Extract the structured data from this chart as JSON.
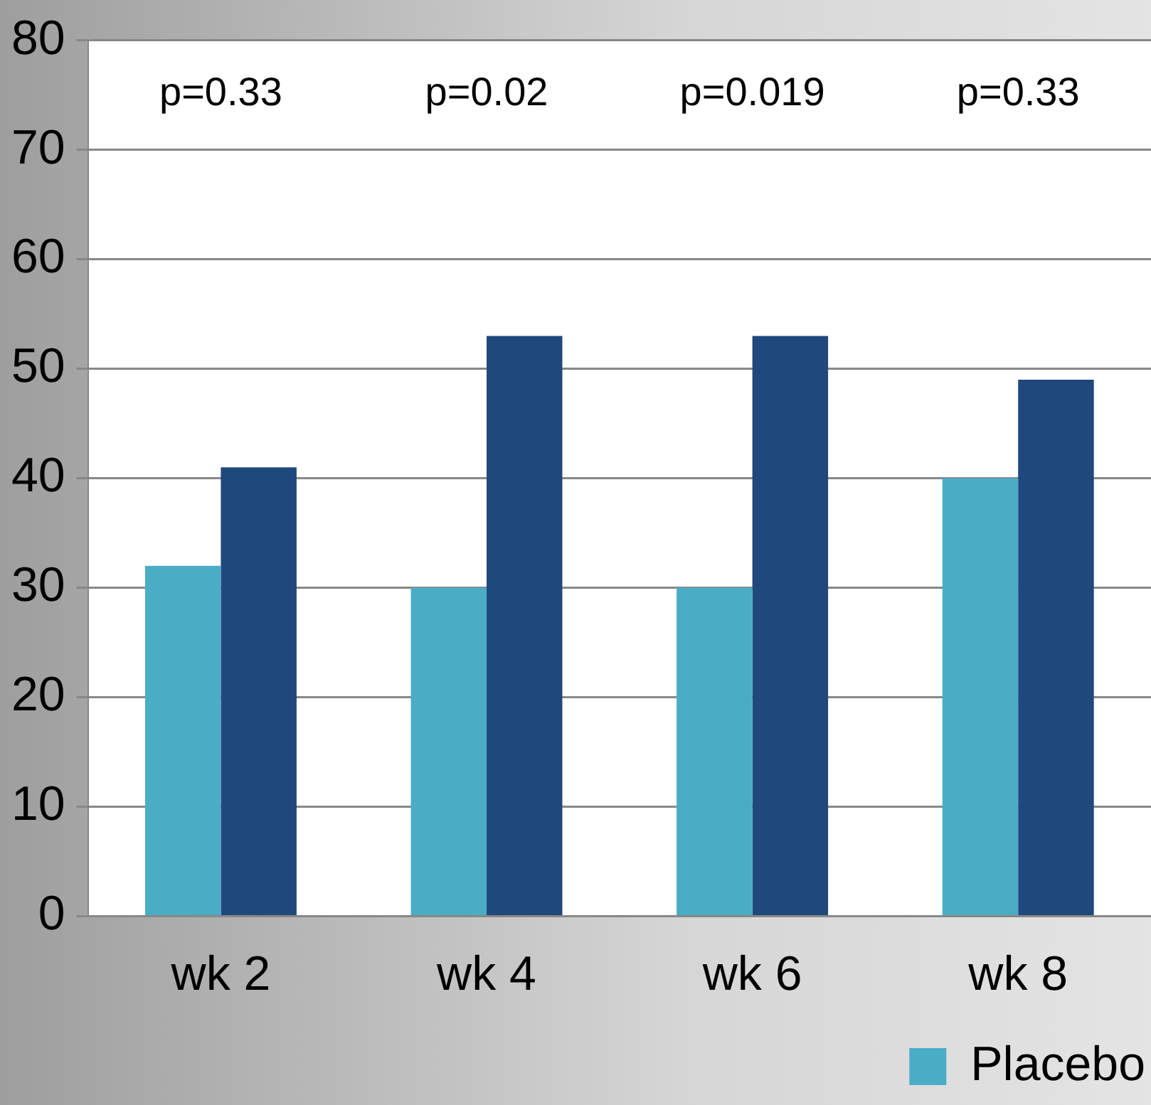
{
  "chart_data": {
    "type": "bar",
    "categories": [
      "wk 2",
      "wk 4",
      "wk 6",
      "wk 8"
    ],
    "series": [
      {
        "name": "Placebo",
        "color": "#4bacc6",
        "values": [
          32,
          30,
          30,
          40
        ]
      },
      {
        "color": "#1f497d",
        "values": [
          41,
          53,
          53,
          49
        ]
      }
    ],
    "ylim": [
      0,
      80
    ],
    "yticks": [
      0,
      10,
      20,
      30,
      40,
      50,
      60,
      70,
      80
    ],
    "grid": "y",
    "legend": "bottom right",
    "annotations": [
      "p=0.33",
      "p=0.02",
      "p=0.019",
      "p=0.33"
    ]
  }
}
